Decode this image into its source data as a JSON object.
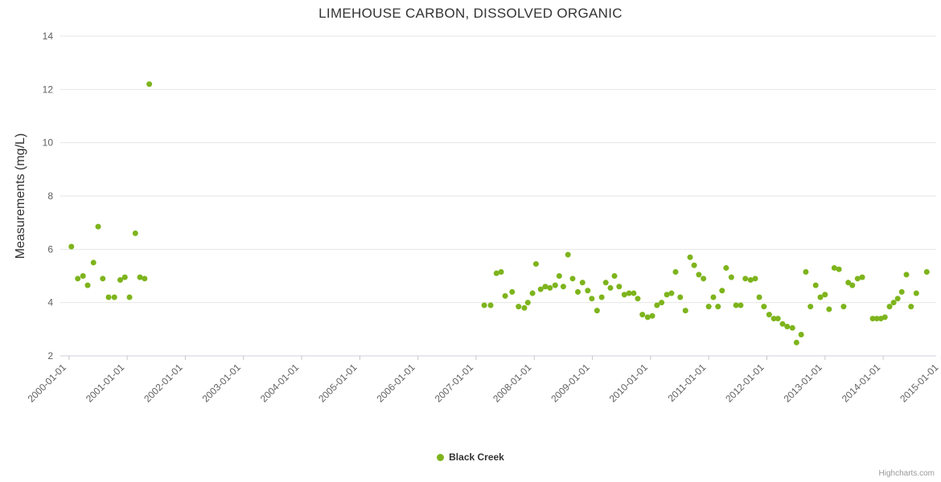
{
  "credits": {
    "text": "Highcharts.com"
  },
  "chart_data": {
    "type": "scatter",
    "title": "LIMEHOUSE CARBON, DISSOLVED ORGANIC",
    "xlabel": "",
    "ylabel": "Measurements (mg/L)",
    "x_unit": "decimal_year",
    "xlim": [
      1999.85,
      2015.05
    ],
    "ylim": [
      2,
      14
    ],
    "y_ticks": [
      2,
      4,
      6,
      8,
      10,
      12,
      14
    ],
    "x_ticks": [
      {
        "v": 2000,
        "label": "2000-01-01"
      },
      {
        "v": 2001,
        "label": "2001-01-01"
      },
      {
        "v": 2002,
        "label": "2002-01-01"
      },
      {
        "v": 2003,
        "label": "2003-01-01"
      },
      {
        "v": 2004,
        "label": "2004-01-01"
      },
      {
        "v": 2005,
        "label": "2005-01-01"
      },
      {
        "v": 2006,
        "label": "2006-01-01"
      },
      {
        "v": 2007,
        "label": "2007-01-01"
      },
      {
        "v": 2008,
        "label": "2008-01-01"
      },
      {
        "v": 2009,
        "label": "2009-01-01"
      },
      {
        "v": 2010,
        "label": "2010-01-01"
      },
      {
        "v": 2011,
        "label": "2011-01-01"
      },
      {
        "v": 2012,
        "label": "2012-01-01"
      },
      {
        "v": 2013,
        "label": "2013-01-01"
      },
      {
        "v": 2014,
        "label": "2014-01-01"
      },
      {
        "v": 2015,
        "label": "2015-01-01"
      }
    ],
    "grid": true,
    "grid_color": "#e6e6e6",
    "axis_label_color": "#606060",
    "legend_position": "bottom-center",
    "series": [
      {
        "name": "Black Creek",
        "color": "#7db41c",
        "marker": "circle",
        "data": [
          [
            2000.04,
            6.1
          ],
          [
            2000.15,
            4.9
          ],
          [
            2000.24,
            5.0
          ],
          [
            2000.32,
            4.65
          ],
          [
            2000.42,
            5.5
          ],
          [
            2000.5,
            6.85
          ],
          [
            2000.58,
            4.9
          ],
          [
            2000.68,
            4.2
          ],
          [
            2000.78,
            4.2
          ],
          [
            2000.88,
            4.85
          ],
          [
            2000.96,
            4.95
          ],
          [
            2001.04,
            4.2
          ],
          [
            2001.14,
            6.6
          ],
          [
            2001.22,
            4.95
          ],
          [
            2001.3,
            4.9
          ],
          [
            2001.38,
            12.2
          ],
          [
            2007.14,
            3.9
          ],
          [
            2007.25,
            3.9
          ],
          [
            2007.35,
            5.1
          ],
          [
            2007.43,
            5.15
          ],
          [
            2007.5,
            4.25
          ],
          [
            2007.62,
            4.4
          ],
          [
            2007.73,
            3.85
          ],
          [
            2007.83,
            3.8
          ],
          [
            2007.89,
            4.0
          ],
          [
            2007.97,
            4.35
          ],
          [
            2008.03,
            5.45
          ],
          [
            2008.11,
            4.5
          ],
          [
            2008.19,
            4.6
          ],
          [
            2008.27,
            4.55
          ],
          [
            2008.36,
            4.65
          ],
          [
            2008.43,
            5.0
          ],
          [
            2008.5,
            4.6
          ],
          [
            2008.58,
            5.8
          ],
          [
            2008.66,
            4.9
          ],
          [
            2008.75,
            4.4
          ],
          [
            2008.83,
            4.75
          ],
          [
            2008.92,
            4.45
          ],
          [
            2008.99,
            4.15
          ],
          [
            2009.08,
            3.7
          ],
          [
            2009.16,
            4.2
          ],
          [
            2009.23,
            4.75
          ],
          [
            2009.31,
            4.55
          ],
          [
            2009.38,
            5.0
          ],
          [
            2009.46,
            4.6
          ],
          [
            2009.55,
            4.3
          ],
          [
            2009.63,
            4.35
          ],
          [
            2009.71,
            4.35
          ],
          [
            2009.78,
            4.15
          ],
          [
            2009.86,
            3.55
          ],
          [
            2009.95,
            3.45
          ],
          [
            2010.03,
            3.5
          ],
          [
            2010.11,
            3.9
          ],
          [
            2010.19,
            4.0
          ],
          [
            2010.28,
            4.3
          ],
          [
            2010.36,
            4.35
          ],
          [
            2010.43,
            5.15
          ],
          [
            2010.51,
            4.2
          ],
          [
            2010.6,
            3.7
          ],
          [
            2010.68,
            5.7
          ],
          [
            2010.75,
            5.4
          ],
          [
            2010.83,
            5.05
          ],
          [
            2010.91,
            4.9
          ],
          [
            2011.0,
            3.85
          ],
          [
            2011.08,
            4.2
          ],
          [
            2011.16,
            3.85
          ],
          [
            2011.23,
            4.45
          ],
          [
            2011.3,
            5.3
          ],
          [
            2011.39,
            4.95
          ],
          [
            2011.47,
            3.9
          ],
          [
            2011.55,
            3.9
          ],
          [
            2011.63,
            4.9
          ],
          [
            2011.72,
            4.85
          ],
          [
            2011.8,
            4.9
          ],
          [
            2011.87,
            4.2
          ],
          [
            2011.95,
            3.85
          ],
          [
            2012.04,
            3.55
          ],
          [
            2012.12,
            3.4
          ],
          [
            2012.19,
            3.4
          ],
          [
            2012.27,
            3.2
          ],
          [
            2012.35,
            3.1
          ],
          [
            2012.44,
            3.05
          ],
          [
            2012.51,
            2.5
          ],
          [
            2012.59,
            2.8
          ],
          [
            2012.67,
            5.15
          ],
          [
            2012.75,
            3.85
          ],
          [
            2012.84,
            4.65
          ],
          [
            2012.92,
            4.2
          ],
          [
            2013.0,
            4.3
          ],
          [
            2013.07,
            3.75
          ],
          [
            2013.16,
            5.3
          ],
          [
            2013.24,
            5.25
          ],
          [
            2013.32,
            3.85
          ],
          [
            2013.4,
            4.75
          ],
          [
            2013.47,
            4.65
          ],
          [
            2013.56,
            4.9
          ],
          [
            2013.64,
            4.95
          ],
          [
            2013.82,
            3.4
          ],
          [
            2013.89,
            3.4
          ],
          [
            2013.96,
            3.4
          ],
          [
            2014.03,
            3.45
          ],
          [
            2014.11,
            3.85
          ],
          [
            2014.18,
            4.0
          ],
          [
            2014.25,
            4.15
          ],
          [
            2014.32,
            4.4
          ],
          [
            2014.4,
            5.05
          ],
          [
            2014.48,
            3.85
          ],
          [
            2014.57,
            4.35
          ],
          [
            2014.75,
            5.15
          ]
        ]
      }
    ]
  }
}
